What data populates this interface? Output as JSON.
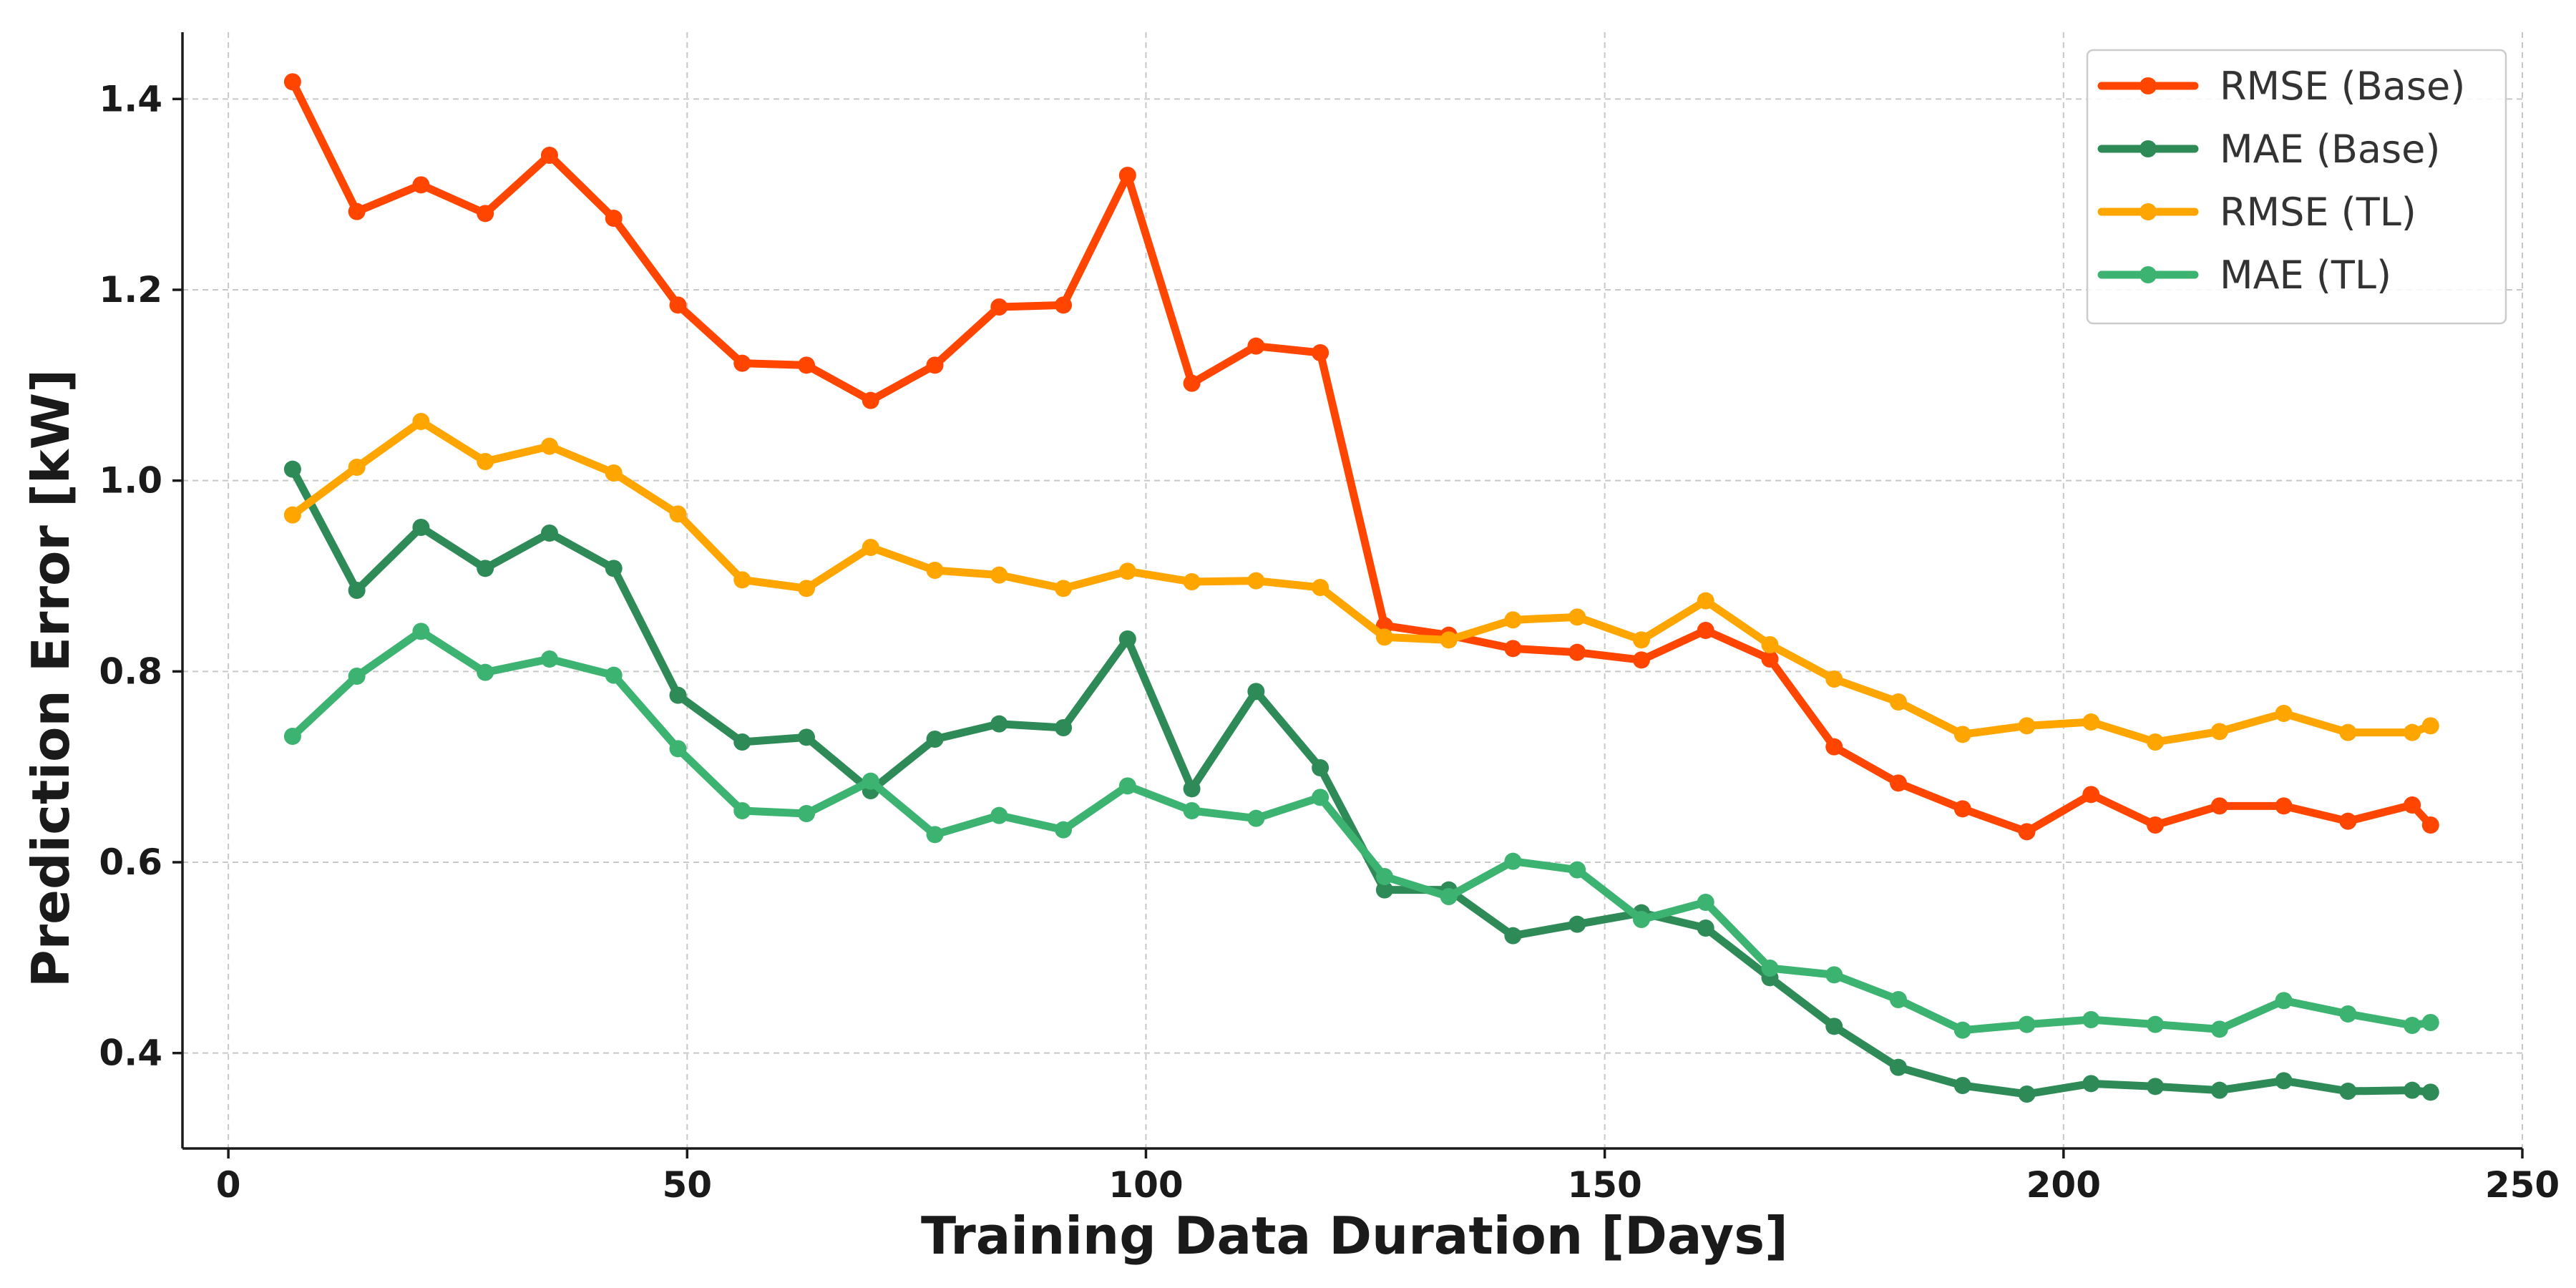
{
  "chart_data": {
    "type": "line",
    "xlabel": "Training Data Duration [Days]",
    "ylabel": "Prediction Error [kW]",
    "xlim": [
      -5,
      250
    ],
    "ylim": [
      0.3,
      1.47
    ],
    "xticks": [
      0,
      50,
      100,
      150,
      200,
      250
    ],
    "yticks": [
      0.4,
      0.6,
      0.8,
      1.0,
      1.2,
      1.4
    ],
    "grid": true,
    "legend_position": "top-right",
    "x": [
      7,
      14,
      21,
      28,
      35,
      42,
      49,
      56,
      63,
      70,
      77,
      84,
      91,
      98,
      105,
      112,
      119,
      126,
      133,
      140,
      147,
      154,
      161,
      168,
      175,
      182,
      189,
      196,
      203,
      210,
      217,
      224,
      231,
      238,
      240
    ],
    "series": [
      {
        "name": "RMSE (Base)",
        "color": "#ff4500",
        "values": [
          1.418,
          1.282,
          1.31,
          1.28,
          1.341,
          1.275,
          1.184,
          1.123,
          1.121,
          1.084,
          1.121,
          1.182,
          1.184,
          1.32,
          1.102,
          1.141,
          1.134,
          0.848,
          0.838,
          0.824,
          0.82,
          0.812,
          0.843,
          0.813,
          0.721,
          0.683,
          0.656,
          0.632,
          0.671,
          0.639,
          0.659,
          0.659,
          0.643,
          0.66,
          0.639
        ]
      },
      {
        "name": "MAE (Base)",
        "color": "#2e8b57",
        "values": [
          1.012,
          0.885,
          0.951,
          0.908,
          0.945,
          0.908,
          0.775,
          0.726,
          0.731,
          0.675,
          0.729,
          0.745,
          0.741,
          0.834,
          0.677,
          0.779,
          0.699,
          0.571,
          0.571,
          0.523,
          0.535,
          0.547,
          0.531,
          0.479,
          0.428,
          0.385,
          0.366,
          0.357,
          0.368,
          0.365,
          0.361,
          0.371,
          0.36,
          0.361,
          0.359
        ]
      },
      {
        "name": "RMSE (TL)",
        "color": "#ffa500",
        "values": [
          0.964,
          1.014,
          1.062,
          1.02,
          1.036,
          1.008,
          0.965,
          0.896,
          0.887,
          0.93,
          0.906,
          0.901,
          0.887,
          0.905,
          0.894,
          0.895,
          0.888,
          0.836,
          0.833,
          0.854,
          0.857,
          0.833,
          0.874,
          0.828,
          0.792,
          0.768,
          0.734,
          0.743,
          0.747,
          0.726,
          0.737,
          0.756,
          0.736,
          0.736,
          0.743
        ]
      },
      {
        "name": "MAE (TL)",
        "color": "#3cb371",
        "values": [
          0.732,
          0.795,
          0.842,
          0.799,
          0.813,
          0.796,
          0.719,
          0.654,
          0.651,
          0.685,
          0.629,
          0.649,
          0.634,
          0.68,
          0.654,
          0.646,
          0.668,
          0.585,
          0.564,
          0.601,
          0.592,
          0.54,
          0.558,
          0.489,
          0.482,
          0.456,
          0.424,
          0.43,
          0.435,
          0.43,
          0.425,
          0.455,
          0.441,
          0.429,
          0.432
        ]
      }
    ]
  }
}
